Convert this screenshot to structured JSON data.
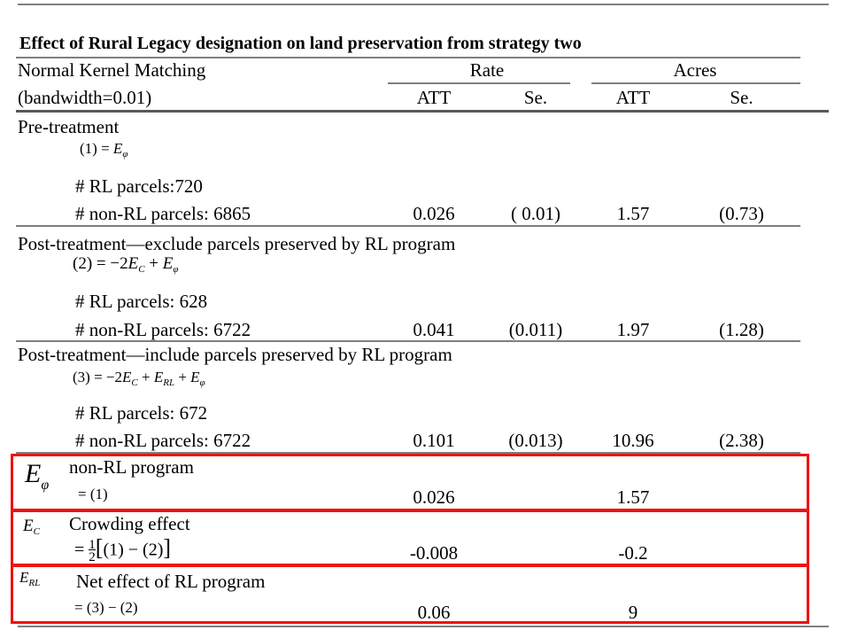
{
  "title": "Effect of Rural Legacy designation on land preservation from strategy two",
  "header": {
    "col1_line1": "Normal Kernel Matching",
    "col1_line2": "(bandwidth=0.01)",
    "rate": "Rate",
    "acres": "Acres",
    "sub": [
      "ATT",
      "Se.",
      "ATT",
      "Se."
    ]
  },
  "sections": [
    {
      "label": "Pre-treatment",
      "equation": "(1) = E_φ",
      "rl_parcels": "# RL parcels:720",
      "non_rl_parcels": "# non-RL parcels: 6865",
      "values": [
        "0.026",
        "( 0.01)",
        "1.57",
        "(0.73)"
      ]
    },
    {
      "label": "Post-treatment—exclude parcels preserved by RL program",
      "equation": "(2) = −2E_C + E_φ",
      "rl_parcels": "# RL parcels: 628",
      "non_rl_parcels": "# non-RL parcels: 6722",
      "values": [
        "0.041",
        "(0.011)",
        "1.97",
        "(1.28)"
      ]
    },
    {
      "label": "Post-treatment—include parcels preserved by RL program",
      "equation": "(3) = −2E_C + E_RL + E_φ",
      "rl_parcels": "# RL parcels: 672",
      "non_rl_parcels": "# non-RL parcels: 6722",
      "values": [
        "0.101",
        "(0.013)",
        "10.96",
        "(2.38)"
      ]
    }
  ],
  "effects": [
    {
      "symbol": "E_φ",
      "label": "non-RL program",
      "formula": "= (1)",
      "rate_att": "0.026",
      "acres_att": "1.57"
    },
    {
      "symbol": "E_C",
      "label": "Crowding effect",
      "formula": "= 1/2 [(1) − (2)]",
      "rate_att": "-0.008",
      "acres_att": "-0.2"
    },
    {
      "symbol": "E_RL",
      "label": "Net effect of RL program",
      "formula": "= (3) − (2)",
      "rate_att": "0.06",
      "acres_att": "9"
    }
  ],
  "colors": {
    "highlight_box": "#ee1111",
    "rule": "#7f7f7f"
  }
}
